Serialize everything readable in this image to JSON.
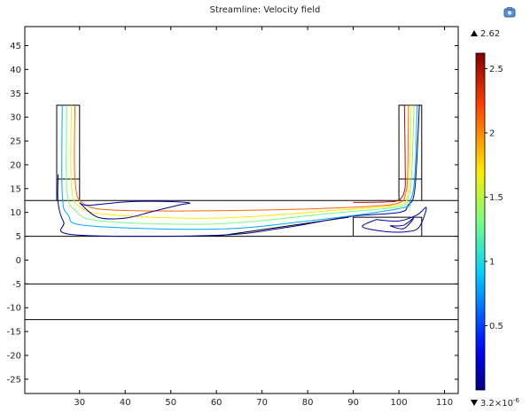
{
  "window": {
    "title": "Streamline: Velocity field"
  },
  "toolbar": {
    "icon": "camera-icon"
  },
  "chart_data": {
    "type": "streamline",
    "title": "Streamline: Velocity field",
    "xlabel": "",
    "ylabel": "",
    "xlim": [
      18,
      113
    ],
    "ylim": [
      -28,
      49
    ],
    "xticks": [
      30,
      40,
      50,
      60,
      70,
      80,
      90,
      100,
      110
    ],
    "yticks": [
      45,
      40,
      35,
      30,
      25,
      20,
      15,
      10,
      5,
      0,
      -5,
      -10,
      -15,
      -20,
      -25
    ],
    "grid": false,
    "colorbar": {
      "max_label": "2.62",
      "min_label": "3.2×10",
      "min_exp": "-6",
      "ticks": [
        {
          "v": 2.5,
          "t": "2.5"
        },
        {
          "v": 2,
          "t": "2"
        },
        {
          "v": 1.5,
          "t": "1.5"
        },
        {
          "v": 1,
          "t": "1"
        },
        {
          "v": 0.5,
          "t": "0.5"
        }
      ],
      "range": [
        0,
        2.62
      ],
      "colormap": "rainbow"
    },
    "geometry": {
      "hlines": [
        12.5,
        5,
        -5,
        -12.5
      ],
      "inlet_box": [
        [
          25,
          12.5
        ],
        [
          25,
          32.5
        ],
        [
          30,
          32.5
        ],
        [
          30,
          12.5
        ]
      ],
      "inlet_box_line": 17,
      "outlet_box": [
        [
          100,
          12.5
        ],
        [
          100,
          32.5
        ],
        [
          105,
          32.5
        ],
        [
          105,
          12.5
        ]
      ],
      "outlet_box_line": 17,
      "step": [
        [
          90,
          5
        ],
        [
          90,
          9
        ],
        [
          105,
          9
        ],
        [
          105,
          5
        ]
      ],
      "ramp": [
        [
          60,
          5
        ],
        [
          89,
          9
        ]
      ]
    },
    "streamlines": [
      {
        "speed": 0.05,
        "points": [
          [
            25.3,
            18
          ],
          [
            25.3,
            12
          ],
          [
            26.5,
            8
          ],
          [
            29,
            5.3
          ],
          [
            60,
            5.2
          ],
          [
            75,
            6.8
          ],
          [
            89,
            9.1
          ],
          [
            100,
            10
          ],
          [
            102,
            11.5
          ],
          [
            103.5,
            15
          ],
          [
            104.5,
            32.5
          ]
        ]
      },
      {
        "speed": 0.8,
        "points": [
          [
            26.2,
            32.5
          ],
          [
            26.2,
            14
          ],
          [
            27.5,
            9.5
          ],
          [
            32,
            7.2
          ],
          [
            60,
            6.5
          ],
          [
            80,
            8.2
          ],
          [
            100,
            10.8
          ],
          [
            102.5,
            12.5
          ],
          [
            103.5,
            18
          ],
          [
            104,
            32.5
          ]
        ]
      },
      {
        "speed": 1.3,
        "points": [
          [
            27.2,
            32.5
          ],
          [
            27.2,
            15
          ],
          [
            29,
            10.5
          ],
          [
            35,
            8.2
          ],
          [
            60,
            7.6
          ],
          [
            85,
            9.8
          ],
          [
            100,
            11.2
          ],
          [
            102,
            13
          ],
          [
            102.8,
            18
          ],
          [
            103.3,
            32.5
          ]
        ]
      },
      {
        "speed": 1.7,
        "points": [
          [
            28.2,
            32.5
          ],
          [
            28.2,
            16
          ],
          [
            30,
            11.2
          ],
          [
            37,
            9.5
          ],
          [
            60,
            8.8
          ],
          [
            88,
            10.6
          ],
          [
            100,
            11.6
          ],
          [
            101.8,
            13.5
          ],
          [
            102.3,
            18
          ],
          [
            102.7,
            32.5
          ]
        ]
      },
      {
        "speed": 2.1,
        "points": [
          [
            29,
            32.5
          ],
          [
            29,
            17
          ],
          [
            31,
            11.8
          ],
          [
            40,
            10.4
          ],
          [
            70,
            10.5
          ],
          [
            92,
            11.2
          ],
          [
            100,
            12
          ],
          [
            101.5,
            14.2
          ],
          [
            101.9,
            18
          ],
          [
            102.1,
            32.5
          ]
        ]
      },
      {
        "speed": 2.5,
        "points": [
          [
            101.2,
            32.5
          ],
          [
            101.4,
            18
          ],
          [
            101.2,
            14.5
          ],
          [
            100,
            12.6
          ],
          [
            97,
            12.2
          ],
          [
            90,
            12.1
          ]
        ]
      },
      {
        "speed": 0.05,
        "points": [
          [
            30,
            12
          ],
          [
            34,
            9
          ],
          [
            40,
            8.8
          ],
          [
            46,
            10.2
          ],
          [
            52,
            11.6
          ],
          [
            54,
            12
          ],
          [
            48,
            12.3
          ],
          [
            40,
            12.2
          ],
          [
            32,
            11.5
          ],
          [
            30,
            12
          ]
        ]
      },
      {
        "speed": 0.1,
        "points": [
          [
            95,
            8.5
          ],
          [
            100,
            8.2
          ],
          [
            104,
            9.5
          ],
          [
            106,
            11
          ],
          [
            104.5,
            7
          ],
          [
            102,
            6
          ],
          [
            97,
            6
          ],
          [
            92,
            7
          ],
          [
            95,
            8.5
          ]
        ]
      },
      {
        "speed": 0.05,
        "points": [
          [
            98,
            7.2
          ],
          [
            101,
            7.3
          ],
          [
            103.2,
            8.8
          ],
          [
            101,
            6.6
          ],
          [
            98,
            7.2
          ]
        ]
      }
    ]
  }
}
